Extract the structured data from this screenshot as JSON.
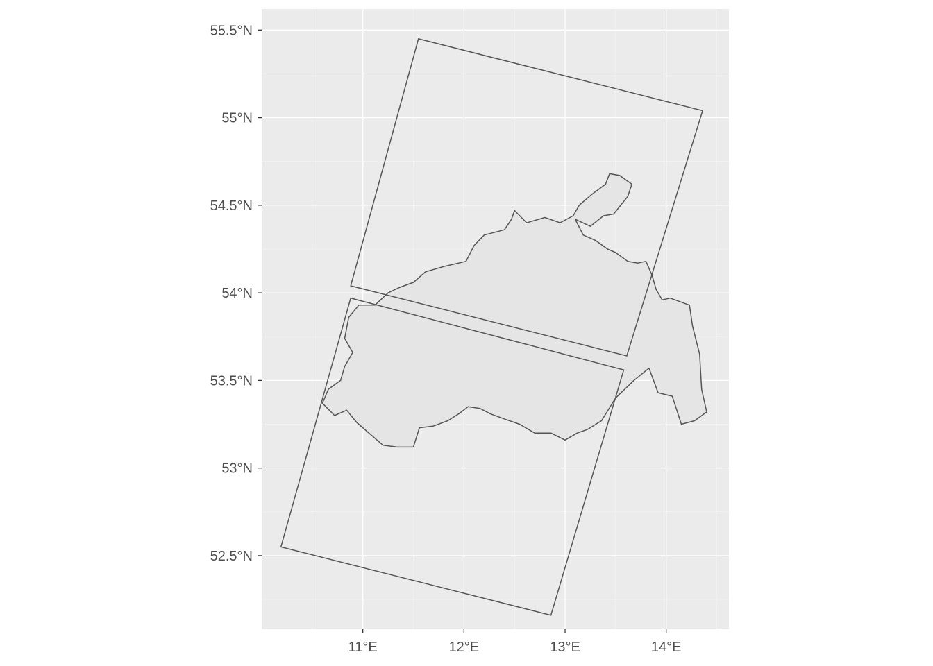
{
  "chart_data": {
    "type": "map",
    "title": "",
    "xlabel": "",
    "ylabel": "",
    "xlim": [
      10.0,
      14.62
    ],
    "ylim": [
      52.08,
      55.62
    ],
    "grid": true,
    "x_ticks": [
      {
        "value": 11,
        "label": "11°E"
      },
      {
        "value": 12,
        "label": "12°E"
      },
      {
        "value": 13,
        "label": "13°E"
      },
      {
        "value": 14,
        "label": "14°E"
      }
    ],
    "y_ticks": [
      {
        "value": 52.5,
        "label": "52.5°N"
      },
      {
        "value": 53.0,
        "label": "53°N"
      },
      {
        "value": 53.5,
        "label": "53.5°N"
      },
      {
        "value": 54.0,
        "label": "54°N"
      },
      {
        "value": 54.5,
        "label": "54.5°N"
      },
      {
        "value": 55.0,
        "label": "55°N"
      },
      {
        "value": 55.5,
        "label": "55.5°N"
      }
    ],
    "colors": {
      "panel": "#ebebeb",
      "region_fill": "#e5e5e5",
      "outline": "#555555"
    },
    "footprints": [
      {
        "coords": [
          [
            11.55,
            55.45
          ],
          [
            14.36,
            55.04
          ],
          [
            13.61,
            53.64
          ],
          [
            10.88,
            54.04
          ]
        ]
      },
      {
        "coords": [
          [
            10.88,
            53.97
          ],
          [
            13.58,
            53.56
          ],
          [
            12.86,
            52.16
          ],
          [
            10.19,
            52.55
          ]
        ]
      }
    ],
    "region": {
      "coords": [
        [
          10.6,
          53.37
        ],
        [
          10.72,
          53.3
        ],
        [
          10.84,
          53.33
        ],
        [
          10.94,
          53.26
        ],
        [
          11.08,
          53.19
        ],
        [
          11.2,
          53.13
        ],
        [
          11.34,
          53.12
        ],
        [
          11.5,
          53.12
        ],
        [
          11.56,
          53.23
        ],
        [
          11.7,
          53.24
        ],
        [
          11.84,
          53.27
        ],
        [
          11.95,
          53.31
        ],
        [
          12.04,
          53.35
        ],
        [
          12.16,
          53.34
        ],
        [
          12.26,
          53.31
        ],
        [
          12.4,
          53.28
        ],
        [
          12.55,
          53.25
        ],
        [
          12.7,
          53.2
        ],
        [
          12.86,
          53.2
        ],
        [
          13.0,
          53.16
        ],
        [
          13.12,
          53.2
        ],
        [
          13.22,
          53.22
        ],
        [
          13.36,
          53.27
        ],
        [
          13.5,
          53.4
        ],
        [
          13.68,
          53.5
        ],
        [
          13.83,
          53.57
        ],
        [
          13.92,
          53.43
        ],
        [
          14.06,
          53.41
        ],
        [
          14.15,
          53.25
        ],
        [
          14.28,
          53.27
        ],
        [
          14.4,
          53.32
        ],
        [
          14.35,
          53.45
        ],
        [
          14.33,
          53.65
        ],
        [
          14.26,
          53.81
        ],
        [
          14.23,
          53.93
        ],
        [
          14.04,
          53.97
        ],
        [
          13.96,
          53.96
        ],
        [
          13.9,
          54.02
        ],
        [
          13.86,
          54.1
        ],
        [
          13.8,
          54.18
        ],
        [
          13.72,
          54.17
        ],
        [
          13.62,
          54.18
        ],
        [
          13.5,
          54.23
        ],
        [
          13.42,
          54.25
        ],
        [
          13.3,
          54.3
        ],
        [
          13.18,
          54.33
        ],
        [
          13.1,
          54.42
        ],
        [
          13.25,
          54.38
        ],
        [
          13.38,
          54.44
        ],
        [
          13.48,
          54.45
        ],
        [
          13.62,
          54.55
        ],
        [
          13.66,
          54.62
        ],
        [
          13.54,
          54.67
        ],
        [
          13.44,
          54.68
        ],
        [
          13.4,
          54.62
        ],
        [
          13.26,
          54.56
        ],
        [
          13.14,
          54.5
        ],
        [
          13.08,
          54.44
        ],
        [
          12.95,
          54.4
        ],
        [
          12.8,
          54.43
        ],
        [
          12.62,
          54.4
        ],
        [
          12.5,
          54.47
        ],
        [
          12.47,
          54.42
        ],
        [
          12.4,
          54.36
        ],
        [
          12.2,
          54.33
        ],
        [
          12.1,
          54.27
        ],
        [
          12.02,
          54.18
        ],
        [
          11.8,
          54.15
        ],
        [
          11.62,
          54.12
        ],
        [
          11.5,
          54.06
        ],
        [
          11.36,
          54.03
        ],
        [
          11.25,
          54.0
        ],
        [
          11.12,
          53.93
        ],
        [
          10.96,
          53.93
        ],
        [
          10.86,
          53.86
        ],
        [
          10.82,
          53.74
        ],
        [
          10.9,
          53.66
        ],
        [
          10.82,
          53.58
        ],
        [
          10.78,
          53.5
        ],
        [
          10.66,
          53.45
        ],
        [
          10.6,
          53.37
        ]
      ]
    }
  }
}
